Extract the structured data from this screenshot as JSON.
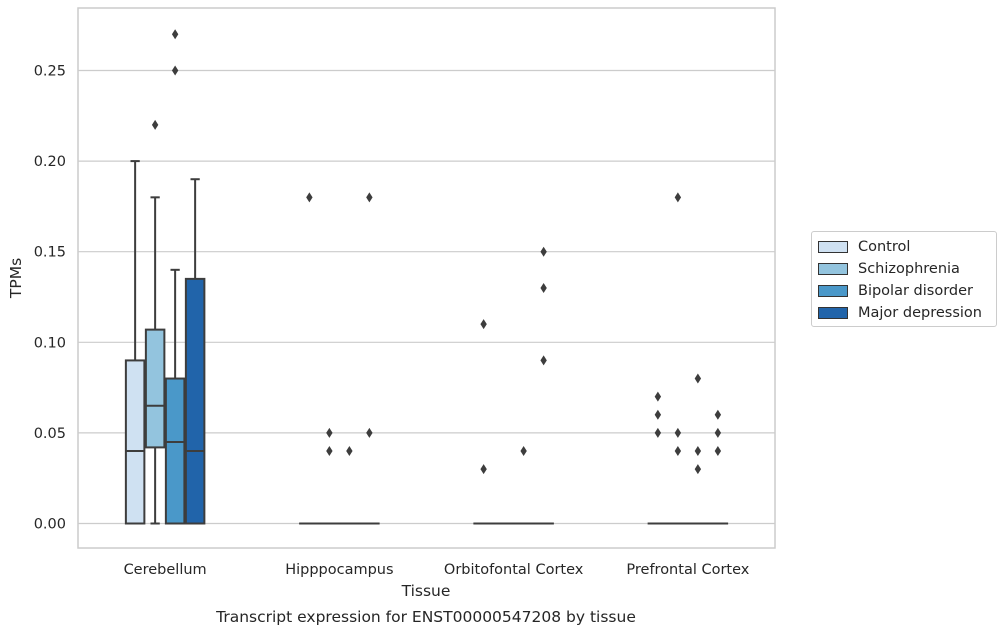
{
  "chart_data": {
    "type": "box",
    "xlabel": "Tissue",
    "ylabel": "TPMs",
    "caption": "Transcript expression for ENST00000547208 by tissue",
    "ylim": [
      -0.013,
      0.284
    ],
    "yticks": [
      "0.00",
      "0.05",
      "0.10",
      "0.15",
      "0.20",
      "0.25"
    ],
    "grid": "horizontal",
    "legend_position": "right",
    "categories": [
      "Cerebellum",
      "Hipppocampus",
      "Orbitofontal Cortex",
      "Prefrontal Cortex"
    ],
    "series": [
      {
        "name": "Control",
        "color": "#cfe1f2",
        "boxes": [
          {
            "whislo": 0.0,
            "q1": 0.0,
            "med": 0.04,
            "q3": 0.09,
            "whishi": 0.2,
            "fliers": []
          },
          {
            "whislo": 0.0,
            "q1": 0.0,
            "med": 0.0,
            "q3": 0.0,
            "whishi": 0.0,
            "fliers": [
              0.18
            ]
          },
          {
            "whislo": 0.0,
            "q1": 0.0,
            "med": 0.0,
            "q3": 0.0,
            "whishi": 0.0,
            "fliers": [
              0.11,
              0.03
            ]
          },
          {
            "whislo": 0.0,
            "q1": 0.0,
            "med": 0.0,
            "q3": 0.0,
            "whishi": 0.0,
            "fliers": [
              0.07,
              0.06,
              0.05
            ]
          }
        ]
      },
      {
        "name": "Schizophrenia",
        "color": "#93c4de",
        "boxes": [
          {
            "whislo": 0.0,
            "q1": 0.042,
            "med": 0.065,
            "q3": 0.107,
            "whishi": 0.18,
            "fliers": [
              0.22
            ]
          },
          {
            "whislo": 0.0,
            "q1": 0.0,
            "med": 0.0,
            "q3": 0.0,
            "whishi": 0.0,
            "fliers": [
              0.05,
              0.04
            ]
          },
          {
            "whislo": 0.0,
            "q1": 0.0,
            "med": 0.0,
            "q3": 0.0,
            "whishi": 0.0,
            "fliers": []
          },
          {
            "whislo": 0.0,
            "q1": 0.0,
            "med": 0.0,
            "q3": 0.0,
            "whishi": 0.0,
            "fliers": [
              0.18,
              0.05,
              0.04
            ]
          }
        ]
      },
      {
        "name": "Bipolar disorder",
        "color": "#4a98c9",
        "boxes": [
          {
            "whislo": 0.0,
            "q1": 0.0,
            "med": 0.045,
            "q3": 0.08,
            "whishi": 0.14,
            "fliers": [
              0.27,
              0.25
            ]
          },
          {
            "whislo": 0.0,
            "q1": 0.0,
            "med": 0.0,
            "q3": 0.0,
            "whishi": 0.0,
            "fliers": [
              0.04
            ]
          },
          {
            "whislo": 0.0,
            "q1": 0.0,
            "med": 0.0,
            "q3": 0.0,
            "whishi": 0.0,
            "fliers": [
              0.04
            ]
          },
          {
            "whislo": 0.0,
            "q1": 0.0,
            "med": 0.0,
            "q3": 0.0,
            "whishi": 0.0,
            "fliers": [
              0.08,
              0.04,
              0.03
            ]
          }
        ]
      },
      {
        "name": "Major depression",
        "color": "#2164aa",
        "boxes": [
          {
            "whislo": 0.0,
            "q1": 0.0,
            "med": 0.04,
            "q3": 0.135,
            "whishi": 0.19,
            "fliers": []
          },
          {
            "whislo": 0.0,
            "q1": 0.0,
            "med": 0.0,
            "q3": 0.0,
            "whishi": 0.0,
            "fliers": [
              0.18,
              0.05
            ]
          },
          {
            "whislo": 0.0,
            "q1": 0.0,
            "med": 0.0,
            "q3": 0.0,
            "whishi": 0.0,
            "fliers": [
              0.15,
              0.13,
              0.09
            ]
          },
          {
            "whislo": 0.0,
            "q1": 0.0,
            "med": 0.0,
            "q3": 0.0,
            "whishi": 0.0,
            "fliers": [
              0.06,
              0.05,
              0.04
            ]
          }
        ]
      }
    ]
  }
}
